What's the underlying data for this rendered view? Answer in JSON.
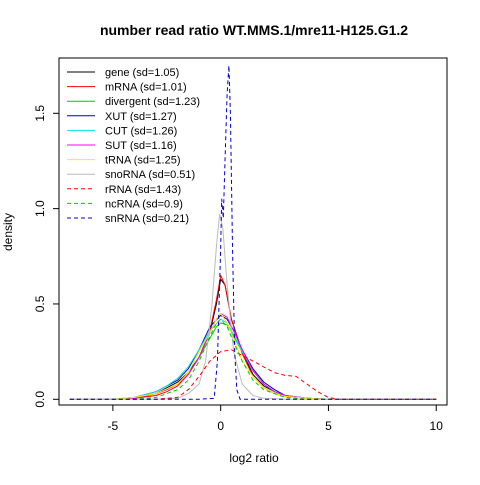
{
  "chart_data": {
    "type": "line",
    "title": "number read ratio WT.MMS.1/mre11-H125.G1.2",
    "xlabel": "log2 ratio",
    "ylabel": "density",
    "xlim": [
      -7.5,
      10.5
    ],
    "ylim": [
      -0.03,
      1.79
    ],
    "x_ticks": [
      -5,
      0,
      5,
      10
    ],
    "y_ticks": [
      0.0,
      0.5,
      1.0,
      1.5
    ],
    "x_tick_labels": [
      "-5",
      "0",
      "5",
      "10"
    ],
    "y_tick_labels": [
      "0.0",
      "0.5",
      "1.0",
      "1.5"
    ],
    "grid": false,
    "legend_position": "top-left",
    "series": [
      {
        "name": "gene (sd=1.05)",
        "color": "#000000",
        "dash": "solid",
        "points": [
          [
            -7,
            0
          ],
          [
            -5,
            0
          ],
          [
            -4,
            0.005
          ],
          [
            -3,
            0.03
          ],
          [
            -2.5,
            0.06
          ],
          [
            -2,
            0.09
          ],
          [
            -1.5,
            0.14
          ],
          [
            -1,
            0.22
          ],
          [
            -0.5,
            0.35
          ],
          [
            -0.2,
            0.5
          ],
          [
            0,
            0.63
          ],
          [
            0.2,
            0.6
          ],
          [
            0.5,
            0.42
          ],
          [
            1,
            0.25
          ],
          [
            1.5,
            0.13
          ],
          [
            2,
            0.07
          ],
          [
            2.5,
            0.04
          ],
          [
            3,
            0.02
          ],
          [
            4,
            0.005
          ],
          [
            5,
            0
          ],
          [
            10,
            0
          ]
        ]
      },
      {
        "name": "mRNA (sd=1.01)",
        "color": "#ff0000",
        "dash": "solid",
        "points": [
          [
            -7,
            0
          ],
          [
            -5,
            0
          ],
          [
            -4,
            0.005
          ],
          [
            -3,
            0.02
          ],
          [
            -2.5,
            0.04
          ],
          [
            -2,
            0.07
          ],
          [
            -1.5,
            0.13
          ],
          [
            -1,
            0.22
          ],
          [
            -0.5,
            0.36
          ],
          [
            -0.2,
            0.52
          ],
          [
            0,
            0.65
          ],
          [
            0.2,
            0.6
          ],
          [
            0.5,
            0.42
          ],
          [
            1,
            0.24
          ],
          [
            1.5,
            0.12
          ],
          [
            2,
            0.06
          ],
          [
            2.5,
            0.03
          ],
          [
            3,
            0.015
          ],
          [
            4,
            0.005
          ],
          [
            5,
            0
          ],
          [
            10,
            0
          ]
        ]
      },
      {
        "name": "divergent (sd=1.23)",
        "color": "#00cc00",
        "dash": "solid",
        "points": [
          [
            -7,
            0
          ],
          [
            -5,
            0
          ],
          [
            -4,
            0.01
          ],
          [
            -3,
            0.03
          ],
          [
            -2.5,
            0.05
          ],
          [
            -2,
            0.08
          ],
          [
            -1.5,
            0.13
          ],
          [
            -1,
            0.22
          ],
          [
            -0.5,
            0.32
          ],
          [
            -0.2,
            0.38
          ],
          [
            0,
            0.4
          ],
          [
            0.3,
            0.39
          ],
          [
            0.6,
            0.33
          ],
          [
            1,
            0.25
          ],
          [
            1.5,
            0.15
          ],
          [
            2,
            0.08
          ],
          [
            2.5,
            0.04
          ],
          [
            3,
            0.02
          ],
          [
            4,
            0.005
          ],
          [
            5,
            0
          ],
          [
            10,
            0
          ]
        ]
      },
      {
        "name": "XUT (sd=1.27)",
        "color": "#0000cc",
        "dash": "solid",
        "points": [
          [
            -7,
            0
          ],
          [
            -5,
            0
          ],
          [
            -4,
            0.01
          ],
          [
            -3,
            0.04
          ],
          [
            -2.5,
            0.07
          ],
          [
            -2,
            0.1
          ],
          [
            -1.5,
            0.16
          ],
          [
            -1,
            0.26
          ],
          [
            -0.5,
            0.38
          ],
          [
            0,
            0.44
          ],
          [
            0.3,
            0.42
          ],
          [
            0.6,
            0.36
          ],
          [
            1,
            0.26
          ],
          [
            1.5,
            0.16
          ],
          [
            2,
            0.09
          ],
          [
            2.5,
            0.05
          ],
          [
            3,
            0.02
          ],
          [
            4,
            0.005
          ],
          [
            5,
            0
          ],
          [
            10,
            0
          ]
        ]
      },
      {
        "name": "CUT (sd=1.26)",
        "color": "#00e5e5",
        "dash": "solid",
        "points": [
          [
            -7,
            0
          ],
          [
            -5,
            0
          ],
          [
            -4,
            0.01
          ],
          [
            -3,
            0.04
          ],
          [
            -2.5,
            0.07
          ],
          [
            -2,
            0.11
          ],
          [
            -1.5,
            0.17
          ],
          [
            -1,
            0.26
          ],
          [
            -0.5,
            0.36
          ],
          [
            0,
            0.42
          ],
          [
            0.3,
            0.4
          ],
          [
            0.6,
            0.34
          ],
          [
            1,
            0.25
          ],
          [
            1.5,
            0.15
          ],
          [
            2,
            0.08
          ],
          [
            2.5,
            0.04
          ],
          [
            3,
            0.02
          ],
          [
            4,
            0.005
          ],
          [
            5,
            0
          ],
          [
            10,
            0
          ]
        ]
      },
      {
        "name": "SUT (sd=1.16)",
        "color": "#ff00ff",
        "dash": "solid",
        "points": [
          [
            -7,
            0
          ],
          [
            -5,
            0
          ],
          [
            -4,
            0.005
          ],
          [
            -3,
            0.03
          ],
          [
            -2.5,
            0.05
          ],
          [
            -2,
            0.08
          ],
          [
            -1.5,
            0.13
          ],
          [
            -1,
            0.22
          ],
          [
            -0.5,
            0.35
          ],
          [
            -0.2,
            0.42
          ],
          [
            0,
            0.45
          ],
          [
            0.3,
            0.43
          ],
          [
            0.6,
            0.36
          ],
          [
            1,
            0.26
          ],
          [
            1.5,
            0.15
          ],
          [
            2,
            0.08
          ],
          [
            2.5,
            0.04
          ],
          [
            3,
            0.02
          ],
          [
            4,
            0.005
          ],
          [
            5,
            0
          ],
          [
            10,
            0
          ]
        ]
      },
      {
        "name": "tRNA (sd=1.25)",
        "color": "#ffee00",
        "dash": "solid",
        "points": [
          [
            -7,
            0
          ],
          [
            -5,
            0
          ],
          [
            -4.5,
            0.005
          ],
          [
            -4,
            0.01
          ],
          [
            -3,
            0.03
          ],
          [
            -2,
            0.08
          ],
          [
            -1.5,
            0.14
          ],
          [
            -1,
            0.25
          ],
          [
            -0.5,
            0.35
          ],
          [
            -0.2,
            0.42
          ],
          [
            0,
            0.45
          ],
          [
            0.3,
            0.4
          ],
          [
            0.6,
            0.32
          ],
          [
            1,
            0.2
          ],
          [
            1.5,
            0.12
          ],
          [
            2,
            0.06
          ],
          [
            2.5,
            0.03
          ],
          [
            3,
            0.015
          ],
          [
            4,
            0.005
          ],
          [
            5,
            0
          ],
          [
            10,
            0
          ]
        ]
      },
      {
        "name": "snoRNA (sd=0.51)",
        "color": "#bbbbbb",
        "dash": "solid",
        "points": [
          [
            -7,
            0
          ],
          [
            -3,
            0
          ],
          [
            -2,
            0.005
          ],
          [
            -1.5,
            0.03
          ],
          [
            -1,
            0.08
          ],
          [
            -0.7,
            0.2
          ],
          [
            -0.4,
            0.5
          ],
          [
            -0.2,
            0.8
          ],
          [
            -0.05,
            0.97
          ],
          [
            0.1,
            0.9
          ],
          [
            0.3,
            0.6
          ],
          [
            0.6,
            0.25
          ],
          [
            1,
            0.08
          ],
          [
            1.5,
            0.02
          ],
          [
            2,
            0.005
          ],
          [
            3,
            0
          ],
          [
            10,
            0
          ]
        ]
      },
      {
        "name": "rRNA (sd=1.43)",
        "color": "#ff0000",
        "dash": "dashed",
        "points": [
          [
            -7,
            0
          ],
          [
            -3,
            0
          ],
          [
            -2,
            0.01
          ],
          [
            -1.5,
            0.05
          ],
          [
            -1,
            0.12
          ],
          [
            -0.5,
            0.2
          ],
          [
            0,
            0.25
          ],
          [
            0.5,
            0.26
          ],
          [
            1,
            0.23
          ],
          [
            1.5,
            0.2
          ],
          [
            2,
            0.17
          ],
          [
            2.5,
            0.14
          ],
          [
            3,
            0.125
          ],
          [
            3.5,
            0.12
          ],
          [
            4,
            0.08
          ],
          [
            4.5,
            0.04
          ],
          [
            5,
            0.01
          ],
          [
            5.5,
            0
          ],
          [
            10,
            0
          ]
        ]
      },
      {
        "name": "ncRNA (sd=0.9)",
        "color": "#00cc00",
        "dash": "dashed",
        "points": [
          [
            -7,
            0
          ],
          [
            -4,
            0
          ],
          [
            -3,
            0.01
          ],
          [
            -2,
            0.05
          ],
          [
            -1.5,
            0.1
          ],
          [
            -1,
            0.2
          ],
          [
            -0.5,
            0.33
          ],
          [
            -0.2,
            0.4
          ],
          [
            0,
            0.42
          ],
          [
            0.3,
            0.38
          ],
          [
            0.6,
            0.3
          ],
          [
            1,
            0.2
          ],
          [
            1.5,
            0.1
          ],
          [
            2,
            0.05
          ],
          [
            3,
            0.01
          ],
          [
            4,
            0
          ],
          [
            10,
            0
          ]
        ]
      },
      {
        "name": "snRNA (sd=0.21)",
        "color": "#0000cc",
        "dash": "dashed",
        "points": [
          [
            -7,
            0
          ],
          [
            -1,
            0
          ],
          [
            -0.3,
            0.005
          ],
          [
            -0.15,
            0.2
          ],
          [
            0,
            0.8
          ],
          [
            0.05,
            1.05
          ],
          [
            0.12,
            0.95
          ],
          [
            0.2,
            1.25
          ],
          [
            0.3,
            1.6
          ],
          [
            0.38,
            1.75
          ],
          [
            0.45,
            1.5
          ],
          [
            0.55,
            0.8
          ],
          [
            0.65,
            0.25
          ],
          [
            0.75,
            0.05
          ],
          [
            0.9,
            0
          ],
          [
            10,
            0
          ]
        ]
      }
    ]
  }
}
